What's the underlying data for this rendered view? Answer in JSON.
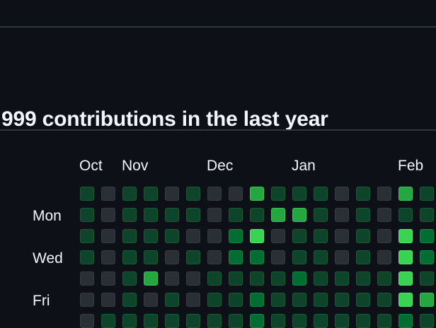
{
  "heading": "999 contributions in the last year",
  "months": [
    "Oct",
    "Nov",
    "Dec",
    "Jan",
    "Feb"
  ],
  "days": [
    "Mon",
    "Wed",
    "Fri"
  ],
  "colors": {
    "level0": "#2a2f36",
    "level1": "#0e4429",
    "level2": "#006d32",
    "level3": "#26a641",
    "level4": "#39d353",
    "background": "#0d1117"
  },
  "contribution_levels": [
    [
      1,
      0,
      1,
      1,
      0,
      1,
      0,
      0,
      3,
      1,
      1,
      1,
      0,
      1,
      0,
      3,
      1
    ],
    [
      1,
      0,
      1,
      1,
      1,
      1,
      0,
      1,
      1,
      3,
      3,
      1,
      0,
      1,
      0,
      1,
      1
    ],
    [
      1,
      0,
      1,
      1,
      1,
      0,
      0,
      2,
      4,
      0,
      1,
      1,
      0,
      1,
      0,
      4,
      2
    ],
    [
      1,
      0,
      1,
      1,
      0,
      1,
      0,
      2,
      2,
      0,
      1,
      1,
      0,
      1,
      0,
      4,
      2
    ],
    [
      0,
      0,
      1,
      3,
      0,
      0,
      1,
      1,
      1,
      1,
      2,
      1,
      1,
      1,
      1,
      4,
      1
    ],
    [
      0,
      0,
      1,
      0,
      1,
      0,
      1,
      1,
      2,
      1,
      1,
      1,
      1,
      1,
      1,
      4,
      3
    ],
    [
      0,
      1,
      1,
      1,
      1,
      1,
      1,
      1,
      2,
      1,
      1,
      1,
      1,
      1,
      1,
      2,
      1
    ]
  ]
}
